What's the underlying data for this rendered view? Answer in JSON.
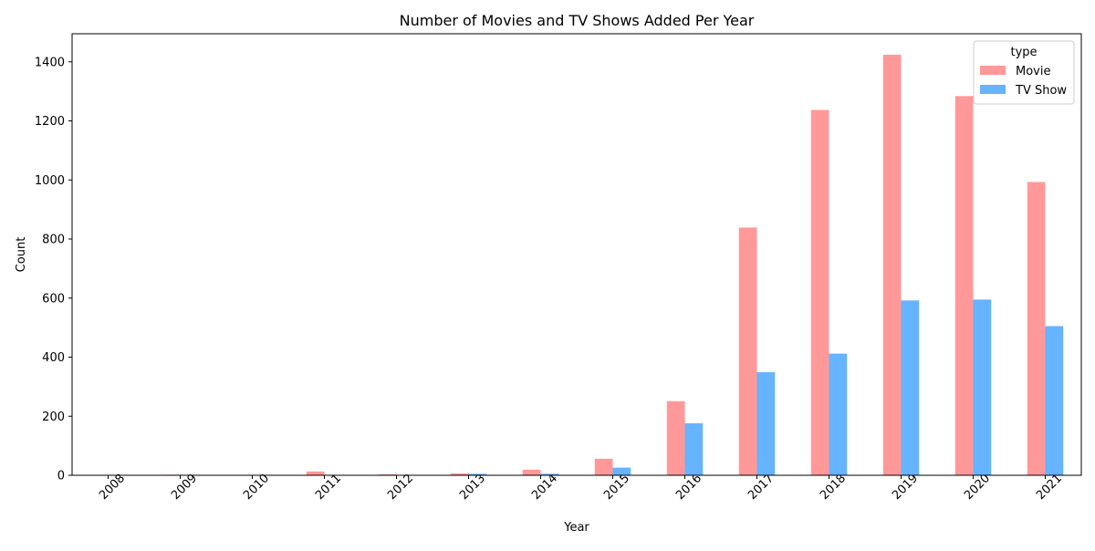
{
  "chart_data": {
    "type": "bar",
    "title": "Number of Movies and TV Shows Added Per Year",
    "xlabel": "Year",
    "ylabel": "Count",
    "categories": [
      "2008",
      "2009",
      "2010",
      "2011",
      "2012",
      "2013",
      "2014",
      "2015",
      "2016",
      "2017",
      "2018",
      "2019",
      "2020",
      "2021"
    ],
    "series": [
      {
        "name": "Movie",
        "color": "#ff9999",
        "values": [
          1,
          2,
          1,
          13,
          3,
          6,
          19,
          56,
          251,
          839,
          1237,
          1424,
          1284,
          993
        ]
      },
      {
        "name": "TV Show",
        "color": "#66b3ff",
        "values": [
          1,
          0,
          0,
          0,
          0,
          5,
          5,
          26,
          176,
          349,
          412,
          592,
          595,
          505
        ]
      }
    ],
    "ylim": [
      0,
      1495
    ],
    "yticks": [
      0,
      200,
      400,
      600,
      800,
      1000,
      1200,
      1400
    ],
    "xtick_rotation": 45,
    "legend": {
      "title": "type",
      "placement": "top-right"
    },
    "grid": false
  }
}
